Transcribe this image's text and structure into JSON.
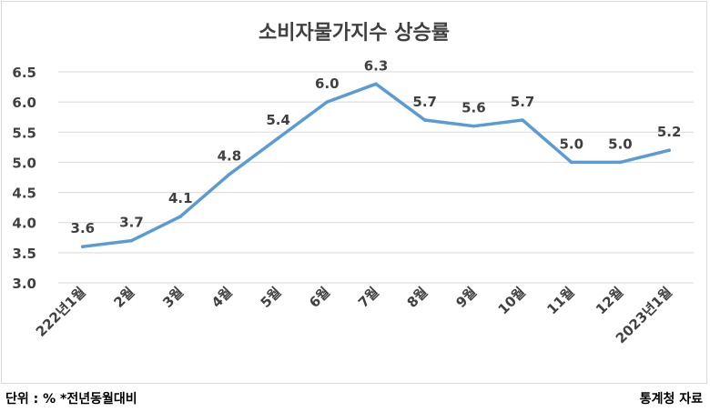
{
  "chart_data": {
    "type": "line",
    "title": "소비자물가지수 상승률",
    "categories": [
      "222년1월",
      "2월",
      "3월",
      "4월",
      "5월",
      "6월",
      "7월",
      "8월",
      "9월",
      "10월",
      "11월",
      "12월",
      "2023년1월"
    ],
    "values": [
      3.6,
      3.7,
      4.1,
      4.8,
      5.4,
      6.0,
      6.3,
      5.7,
      5.6,
      5.7,
      5.0,
      5.0,
      5.2
    ],
    "data_labels": [
      "3.6",
      "3.7",
      "4.1",
      "4.8",
      "5.4",
      "6.0",
      "6.3",
      "5.7",
      "5.6",
      "5.7",
      "5.0",
      "5.0",
      "5.2"
    ],
    "y_ticks": [
      "3.0",
      "3.5",
      "4.0",
      "4.5",
      "5.0",
      "5.5",
      "6.0",
      "6.5"
    ],
    "ylim": [
      3.0,
      6.5
    ],
    "xlabel": "",
    "ylabel": "",
    "grid": true,
    "legend": "none",
    "line_color": "#5b9bd5"
  },
  "footer": {
    "unit_note": "단위 : % *전년동월대비",
    "source": "통계청 자료"
  }
}
